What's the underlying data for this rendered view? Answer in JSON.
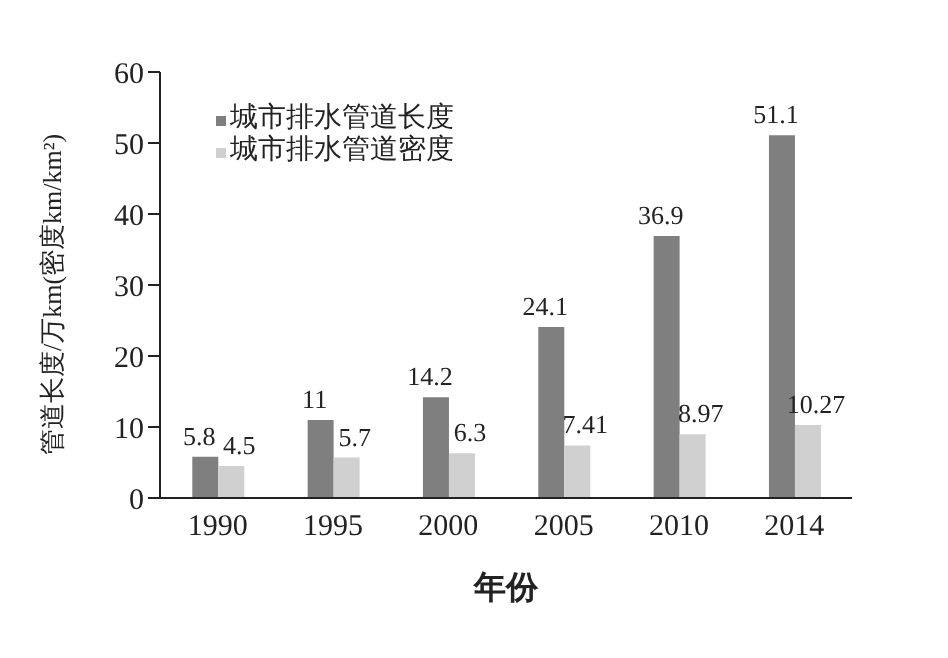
{
  "chart_data": {
    "type": "bar",
    "xlabel": "年份",
    "ylabel": "管道长度/万km(密度km/km²)",
    "categories": [
      "1990",
      "1995",
      "2000",
      "2005",
      "2010",
      "2014"
    ],
    "series": [
      {
        "name": "城市排水管道长度",
        "color": "#7f7f7f",
        "values": [
          5.8,
          11,
          14.2,
          24.1,
          36.9,
          51.1
        ]
      },
      {
        "name": "城市排水管道密度",
        "color": "#d0d0d0",
        "values": [
          4.5,
          5.7,
          6.3,
          7.41,
          8.97,
          10.27
        ]
      }
    ],
    "ylim": [
      0,
      60
    ],
    "yticks": [
      0,
      10,
      20,
      30,
      40,
      50,
      60
    ],
    "data_labels": true,
    "legend": "top left"
  }
}
